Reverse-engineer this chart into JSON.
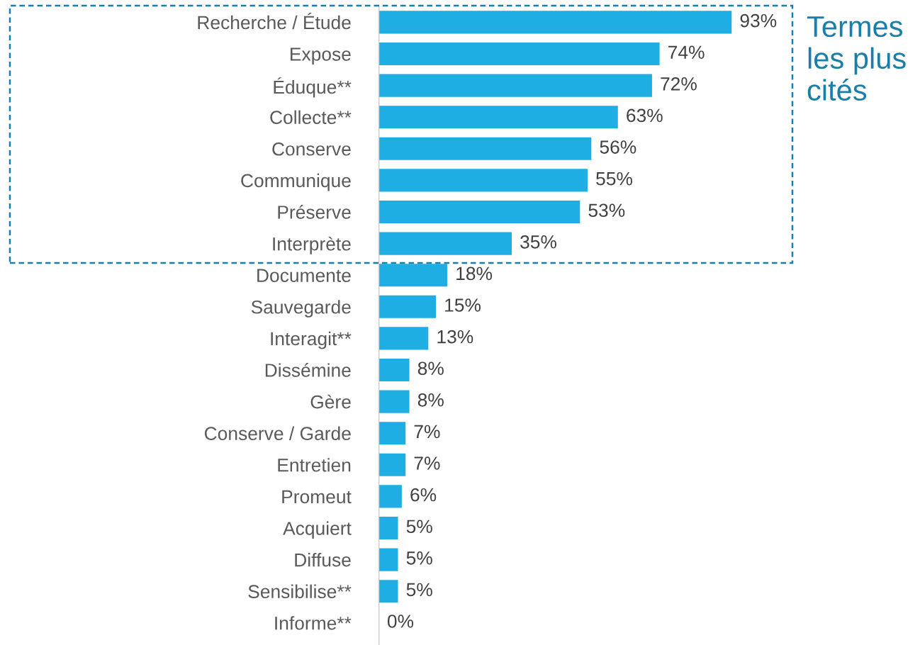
{
  "chart_data": {
    "type": "bar",
    "orientation": "horizontal",
    "categories": [
      "Recherche / Étude",
      "Expose",
      "Éduque**",
      "Collecte**",
      "Conserve",
      "Communique",
      "Préserve",
      "Interprète",
      "Documente",
      "Sauvegarde",
      "Interagit**",
      "Dissémine",
      "Gère",
      "Conserve / Garde",
      "Entretien",
      "Promeut",
      "Acquiert",
      "Diffuse",
      "Sensibilise**",
      "Informe**"
    ],
    "values": [
      93,
      74,
      72,
      63,
      56,
      55,
      53,
      35,
      18,
      15,
      13,
      8,
      8,
      7,
      7,
      6,
      5,
      5,
      5,
      0
    ],
    "value_labels": [
      "93%",
      "74%",
      "72%",
      "63%",
      "56%",
      "55%",
      "53%",
      "35%",
      "18%",
      "15%",
      "13%",
      "8%",
      "8%",
      "7%",
      "7%",
      "6%",
      "5%",
      "5%",
      "5%",
      "0%"
    ],
    "color": "#1eaee3",
    "tick_labels": "y",
    "grid": false,
    "legend": false,
    "annotations": [
      "Termes les plus cités"
    ]
  }
}
